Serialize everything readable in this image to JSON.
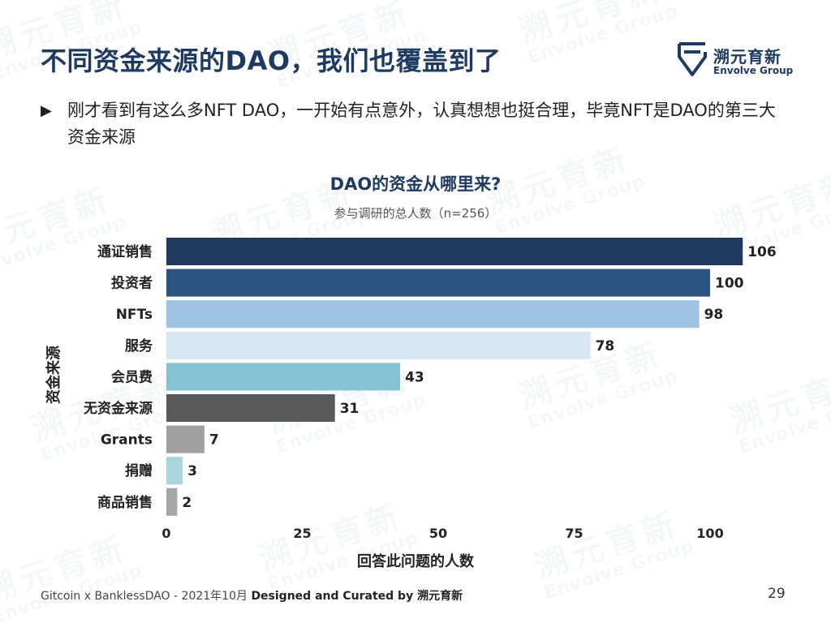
{
  "slide": {
    "title": "不同资金来源的DAO，我们也覆盖到了",
    "bullet": "刚才看到有这么多NFT DAO，一开始有点意外，认真想想也挺合理，毕竟NFT是DAO的第三大资金来源",
    "bullet_icon": "triangle-right-icon"
  },
  "logo": {
    "name_zh": "溯元育新",
    "name_en": "Envolve Group"
  },
  "watermark": {
    "zh": "溯元育新",
    "en": "Envolve Group"
  },
  "footer": {
    "text": "Gitcoin x BanklessDAO - 2021年10月 ",
    "credit": "Designed and Curated by 溯元育新",
    "page_number": "29"
  },
  "chart_data": {
    "type": "bar",
    "orientation": "horizontal",
    "title": "DAO的资金从哪里来?",
    "subtitle": "参与调研的总人数（n=256）",
    "xlabel": "回答此问题的人数",
    "ylabel": "资金来源",
    "categories": [
      "通证销售",
      "投资者",
      "NFTs",
      "服务",
      "会员费",
      "无资金来源",
      "Grants",
      "捐赠",
      "商品销售"
    ],
    "values": [
      106,
      100,
      98,
      78,
      43,
      31,
      7,
      3,
      2
    ],
    "colors": [
      "#1f3a5c",
      "#2b5482",
      "#9fc3e2",
      "#d6e6f4",
      "#86c2d2",
      "#595959",
      "#a0a0a0",
      "#a9d6e2",
      "#a6a6a6"
    ],
    "xlim": [
      0,
      106
    ],
    "xticks": [
      0,
      25,
      50,
      75,
      100
    ],
    "grid": false,
    "legend": "none"
  }
}
